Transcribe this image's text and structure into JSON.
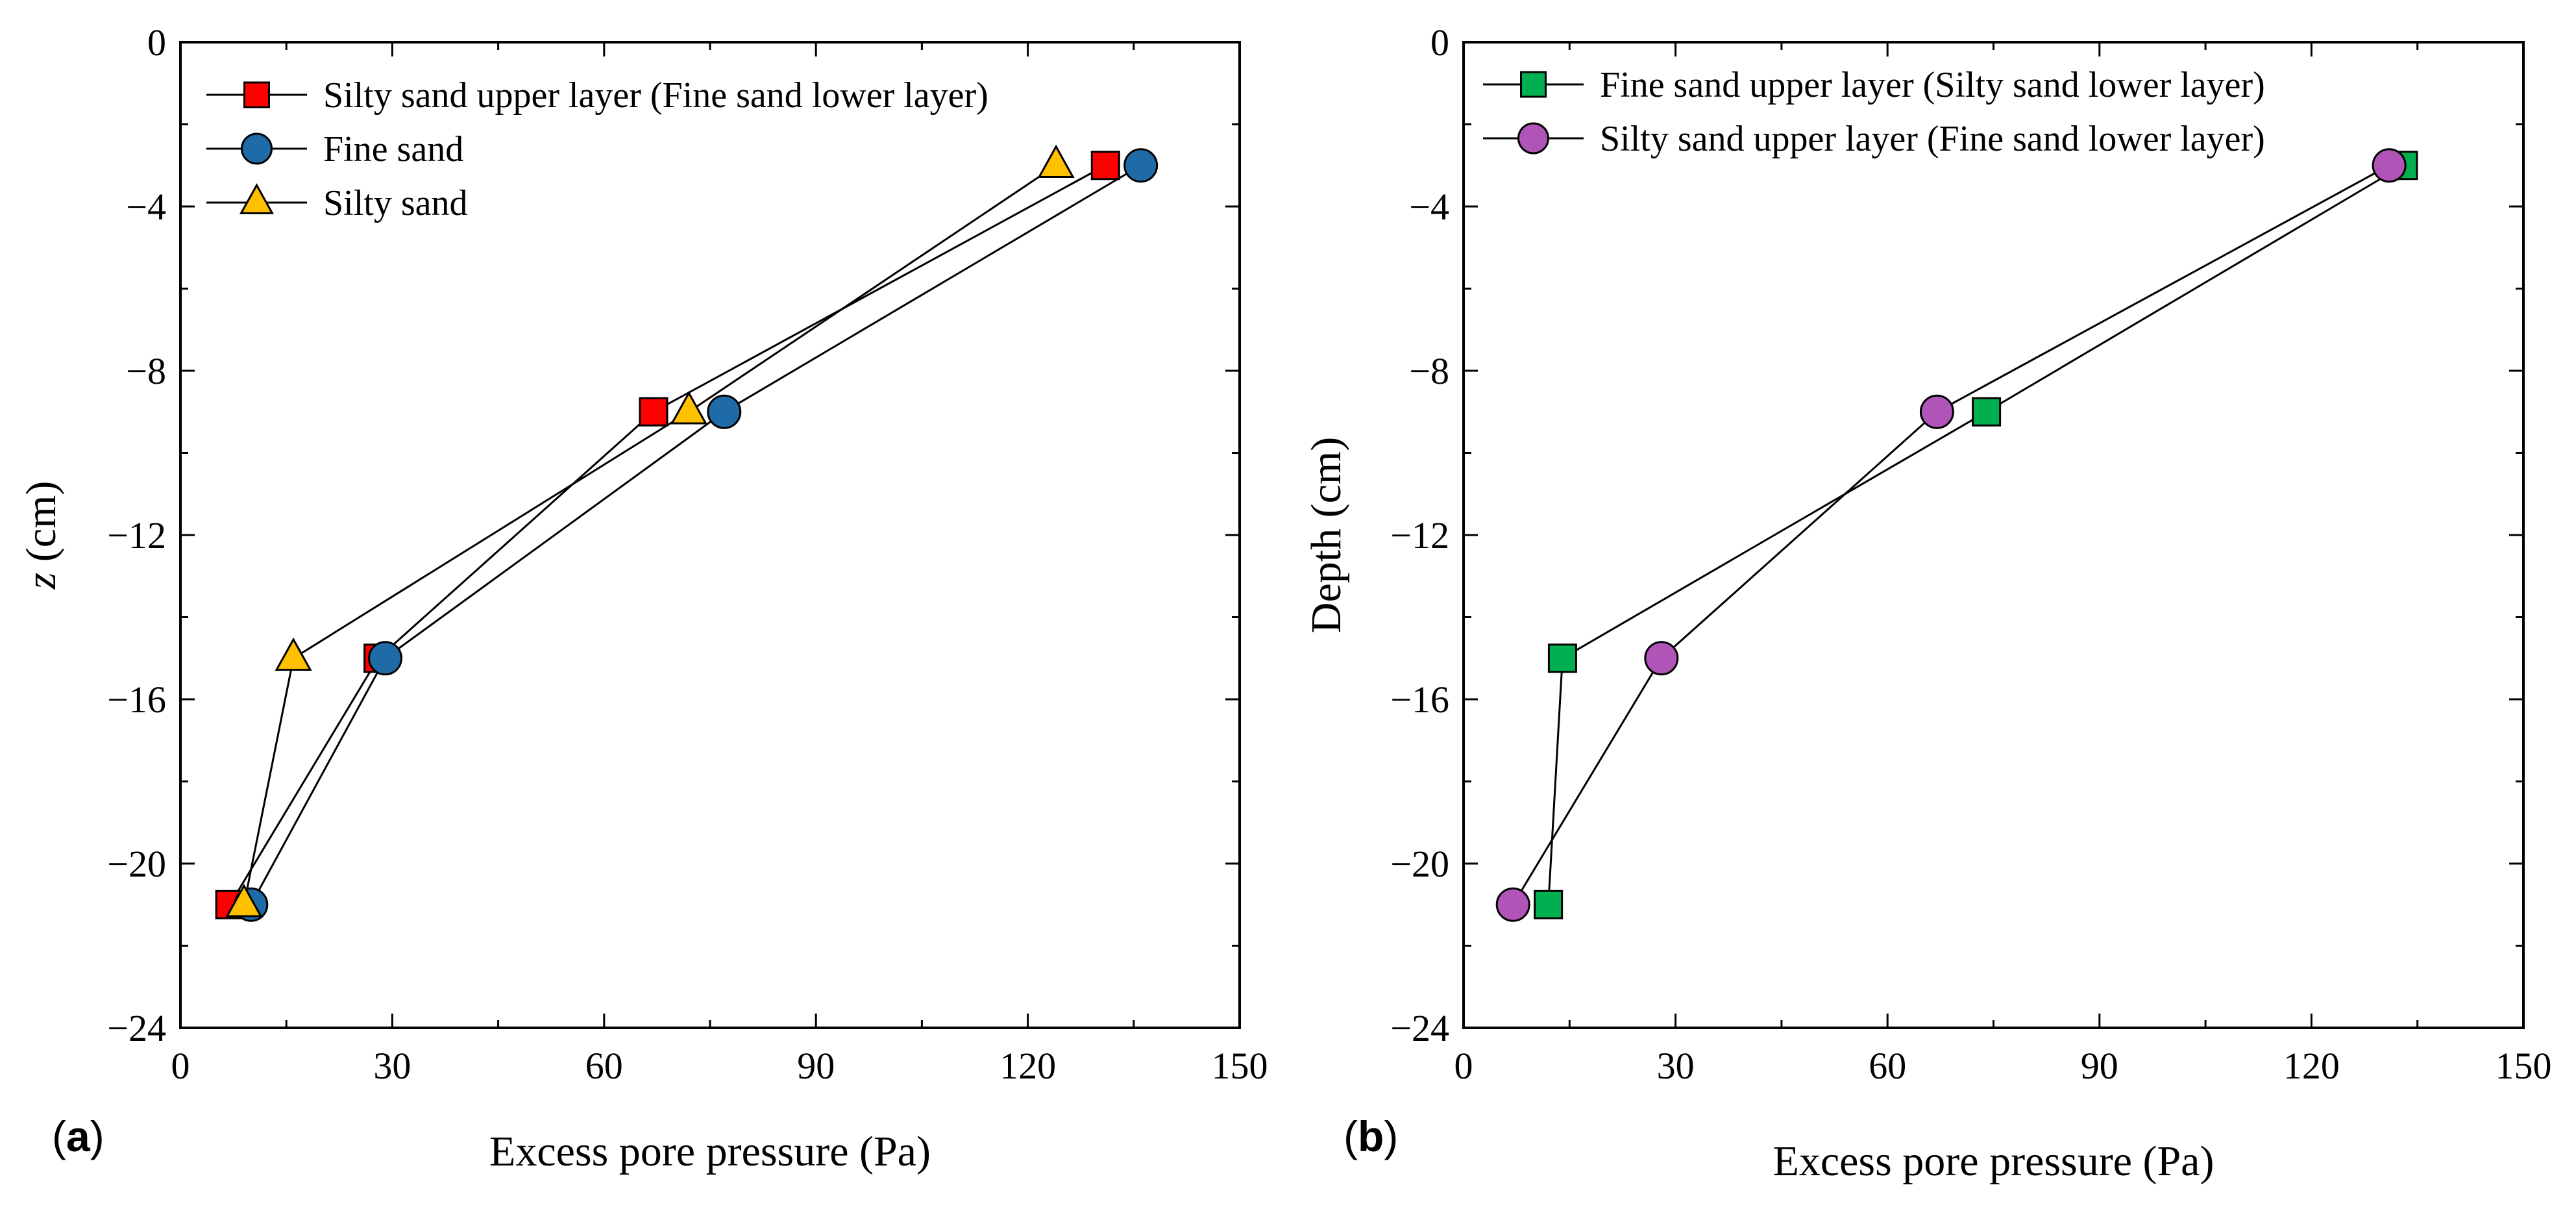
{
  "chart_data": [
    {
      "type": "line",
      "panel_label": "a",
      "title": "",
      "xlabel": "Excess pore pressure (Pa)",
      "ylabel_italic": "z",
      "ylabel_rest": " (cm)",
      "xlim": [
        0,
        150
      ],
      "ylim": [
        -24,
        0
      ],
      "x_ticks": [
        0,
        30,
        60,
        90,
        120,
        150
      ],
      "y_ticks": [
        0,
        -4,
        -8,
        -12,
        -16,
        -20,
        -24
      ],
      "grid": false,
      "legend_position": "top-left",
      "series": [
        {
          "name": "Silty sand upper layer (Fine sand lower layer)",
          "marker": "square",
          "color": "#ff0000",
          "points": [
            [
              131,
              -3
            ],
            [
              67,
              -9
            ],
            [
              28,
              -15
            ],
            [
              7,
              -21
            ]
          ]
        },
        {
          "name": "Fine sand",
          "marker": "circle",
          "color": "#1f6ba8",
          "points": [
            [
              136,
              -3
            ],
            [
              77,
              -9
            ],
            [
              29,
              -15
            ],
            [
              10,
              -21
            ]
          ]
        },
        {
          "name": "Silty sand",
          "marker": "triangle",
          "color": "#ffc000",
          "points": [
            [
              124,
              -3
            ],
            [
              72,
              -9
            ],
            [
              16,
              -15
            ],
            [
              9,
              -21
            ]
          ]
        }
      ]
    },
    {
      "type": "line",
      "panel_label": "b",
      "title": "",
      "xlabel": "Excess pore pressure (Pa)",
      "ylabel": "Depth  (cm)",
      "xlim": [
        0,
        150
      ],
      "ylim": [
        -24,
        0
      ],
      "x_ticks": [
        0,
        30,
        60,
        90,
        120,
        150
      ],
      "y_ticks": [
        0,
        -4,
        -8,
        -12,
        -16,
        -20,
        -24
      ],
      "grid": false,
      "legend_position": "top-left",
      "series": [
        {
          "name": "Fine sand upper layer (Silty sand lower layer)",
          "marker": "square",
          "color": "#00b050",
          "points": [
            [
              133,
              -3
            ],
            [
              74,
              -9
            ],
            [
              14,
              -15
            ],
            [
              12,
              -21
            ]
          ]
        },
        {
          "name": "Silty sand upper layer (Fine sand lower layer)",
          "marker": "circle",
          "color": "#b054b8",
          "points": [
            [
              131,
              -3
            ],
            [
              67,
              -9
            ],
            [
              28,
              -15
            ],
            [
              7,
              -21
            ]
          ]
        }
      ]
    }
  ]
}
